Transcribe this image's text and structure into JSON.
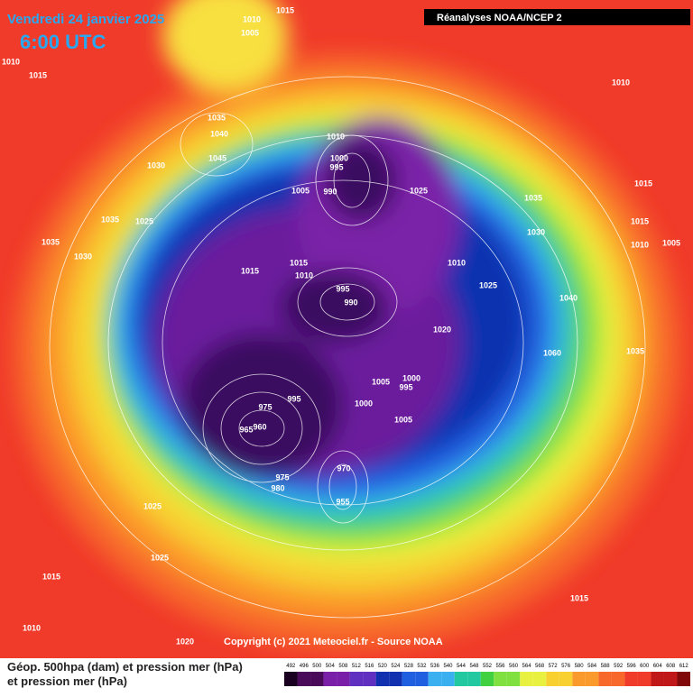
{
  "header": {
    "title": "Vendredi 24 janvier 2025",
    "time": "6:00 UTC",
    "source": "Réanalyses NOAA/NCEP 2"
  },
  "pressure_labels": [
    "1010",
    "1015",
    "1005",
    "1010",
    "1015",
    "1035",
    "1040",
    "1045",
    "1030",
    "1010",
    "1000",
    "995",
    "1005",
    "990",
    "1025",
    "1035",
    "1025",
    "1035",
    "1030",
    "1015",
    "1015",
    "1010",
    "995",
    "990",
    "1010",
    "1025",
    "1035",
    "1030",
    "1015",
    "1015",
    "1010",
    "1005",
    "1010",
    "1040",
    "1020",
    "1035",
    "1060",
    "1005",
    "1000",
    "995",
    "1000",
    "1005",
    "995",
    "975",
    "960",
    "965",
    "970",
    "975",
    "980",
    "955",
    "1025",
    "1025",
    "1015",
    "1010",
    "1020",
    "1015"
  ],
  "footer": {
    "copyright": "Copyright (c) 2021 Meteociel.fr - Source NOAA",
    "legend_title_1": "Géop. 500hpa (dam) et pression mer (hPa)",
    "legend_title_2": "et pression mer (hPa)"
  },
  "scale": [
    492,
    496,
    500,
    504,
    508,
    512,
    516,
    520,
    524,
    528,
    532,
    536,
    540,
    544,
    548,
    552,
    556,
    560,
    564,
    568,
    572,
    576,
    580,
    584,
    588,
    592,
    596,
    600,
    604,
    608,
    612
  ]
}
